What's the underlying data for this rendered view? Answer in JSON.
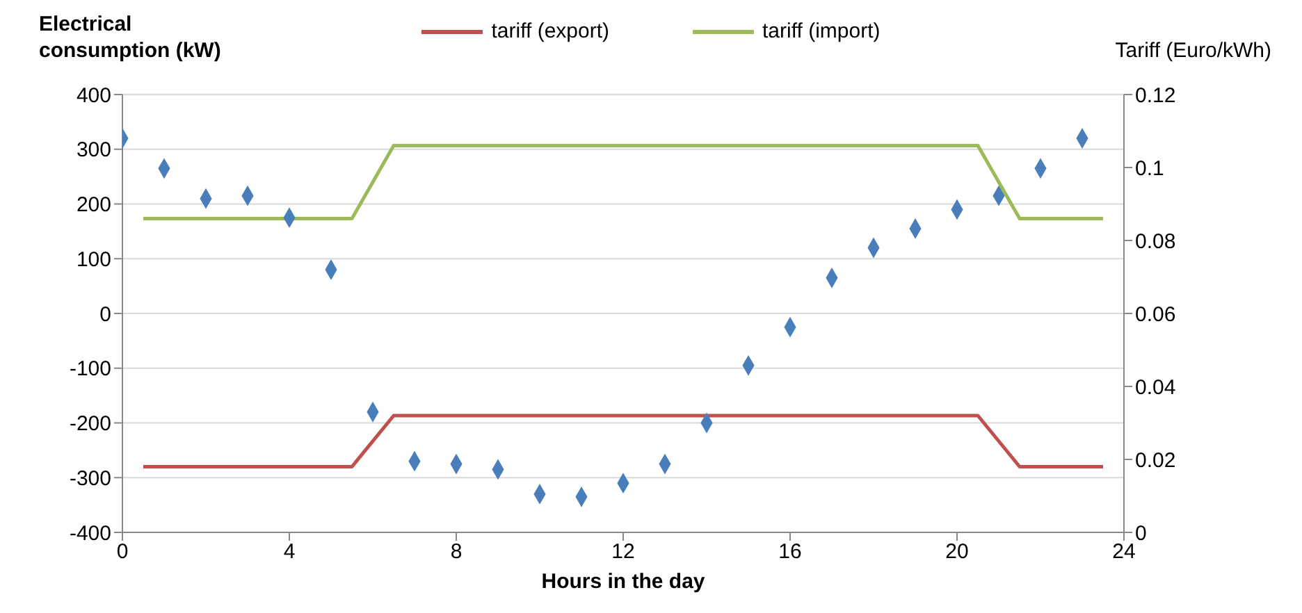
{
  "chart_data": {
    "type": "line",
    "xlabel": "Hours in the day",
    "ylabel": "Electrical consumption (kW)",
    "y2label": "Tariff (Euro/kWh)",
    "xlim": [
      0,
      24
    ],
    "xticks": [
      0,
      4,
      8,
      12,
      16,
      20,
      24
    ],
    "ylim": [
      -400,
      400
    ],
    "yticks": [
      -400,
      -300,
      -200,
      -100,
      0,
      100,
      200,
      300,
      400
    ],
    "y2lim": [
      0,
      0.12
    ],
    "y2ticks": [
      0,
      0.02,
      0.04,
      0.06,
      0.08,
      0.1,
      0.12
    ],
    "grid": "y",
    "legend": "top",
    "series": [
      {
        "type": "scatter",
        "marker": "diamond",
        "color": "#4a7ebb",
        "x": [
          0,
          1,
          2,
          3,
          4,
          5,
          6,
          7,
          8,
          9,
          10,
          11,
          12,
          13,
          14,
          15,
          16,
          17,
          18,
          19,
          20,
          21,
          22,
          23
        ],
        "values": [
          320,
          265,
          210,
          215,
          175,
          80,
          -180,
          -270,
          -275,
          -285,
          -330,
          -335,
          -310,
          -275,
          -200,
          -95,
          -25,
          65,
          120,
          155,
          190,
          215,
          265,
          320
        ]
      },
      {
        "name": "tariff (export)",
        "axis": "y2",
        "color": "#c0504d",
        "x": [
          0.5,
          5.5,
          6.5,
          20.5,
          21.5,
          23.5
        ],
        "values": [
          0.018,
          0.018,
          0.032,
          0.032,
          0.018,
          0.018
        ]
      },
      {
        "name": "tariff (import)",
        "axis": "y2",
        "color": "#9bbb59",
        "x": [
          0.5,
          5.5,
          6.5,
          20.5,
          21.5,
          23.5
        ],
        "values": [
          0.086,
          0.086,
          0.106,
          0.106,
          0.086,
          0.086
        ]
      }
    ]
  }
}
